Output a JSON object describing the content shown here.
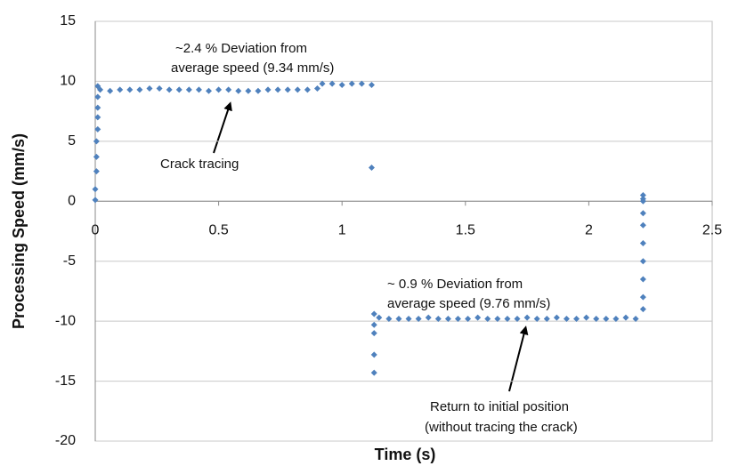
{
  "chart_data": {
    "type": "scatter",
    "x_label": "Time (s)",
    "y_label": "Processing Speed (mm/s)",
    "xlim": [
      0,
      2.5
    ],
    "xticks": [
      0,
      0.5,
      1,
      1.5,
      2,
      2.5
    ],
    "ylim": [
      -20,
      15
    ],
    "yticks": [
      -20,
      -15,
      -10,
      -5,
      0,
      5,
      10,
      15
    ],
    "grid": true,
    "annotations": [
      "~2.4 % Deviation from",
      "average speed (9.34 mm/s)",
      "Crack tracing",
      "~ 0.9 % Deviation from",
      "average speed (9.76 mm/s)",
      "Return to initial position",
      "(without tracing the crack)"
    ],
    "series": [
      {
        "color": "#4f81bd",
        "x": [
          0.0,
          0.0,
          0.005,
          0.005,
          0.005,
          0.01,
          0.01,
          0.01,
          0.01,
          0.01,
          0.02,
          0.06,
          0.1,
          0.14,
          0.18,
          0.22,
          0.26,
          0.3,
          0.34,
          0.38,
          0.42,
          0.46,
          0.5,
          0.54,
          0.58,
          0.62,
          0.66,
          0.7,
          0.74,
          0.78,
          0.82,
          0.86,
          0.9,
          0.92,
          0.96,
          1.0,
          1.04,
          1.08,
          1.12,
          1.12,
          1.13,
          1.13,
          1.13,
          1.13,
          1.13,
          1.15,
          1.19,
          1.23,
          1.27,
          1.31,
          1.35,
          1.39,
          1.43,
          1.47,
          1.51,
          1.55,
          1.59,
          1.63,
          1.67,
          1.71,
          1.75,
          1.79,
          1.83,
          1.87,
          1.91,
          1.95,
          1.99,
          2.03,
          2.07,
          2.11,
          2.15,
          2.19,
          2.22,
          2.22,
          2.22,
          2.22,
          2.22,
          2.22,
          2.22,
          2.22,
          2.22,
          2.22
        ],
        "values": [
          0.1,
          1.0,
          2.5,
          3.7,
          5.0,
          6.0,
          7.0,
          7.8,
          8.7,
          9.6,
          9.3,
          9.2,
          9.3,
          9.3,
          9.3,
          9.4,
          9.4,
          9.3,
          9.3,
          9.3,
          9.3,
          9.2,
          9.3,
          9.3,
          9.2,
          9.2,
          9.2,
          9.3,
          9.3,
          9.3,
          9.3,
          9.3,
          9.4,
          9.8,
          9.8,
          9.7,
          9.8,
          9.8,
          9.7,
          2.8,
          -14.3,
          -12.8,
          -11.0,
          -10.3,
          -9.4,
          -9.7,
          -9.8,
          -9.8,
          -9.8,
          -9.8,
          -9.7,
          -9.8,
          -9.8,
          -9.8,
          -9.8,
          -9.7,
          -9.8,
          -9.8,
          -9.8,
          -9.8,
          -9.7,
          -9.8,
          -9.8,
          -9.7,
          -9.8,
          -9.8,
          -9.7,
          -9.8,
          -9.8,
          -9.8,
          -9.7,
          -9.8,
          -9.0,
          -8.0,
          -6.5,
          -5.0,
          -3.5,
          -2.0,
          -1.0,
          0.5,
          0.2,
          0.0
        ]
      }
    ]
  }
}
